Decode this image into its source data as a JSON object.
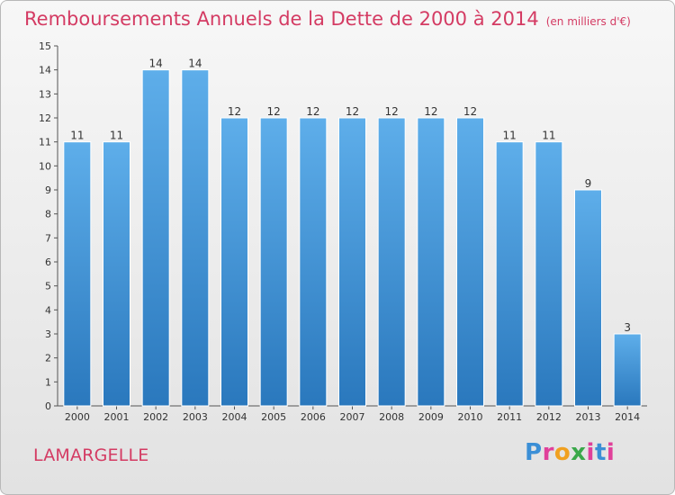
{
  "title": "Remboursements Annuels de la Dette de 2000 à 2014",
  "unit": "(en milliers d'€)",
  "commune": "LAMARGELLE",
  "logo": {
    "letters": [
      "P",
      "r",
      "o",
      "x",
      "i",
      "t",
      "i"
    ],
    "colors": [
      "#3b8fd6",
      "#e0409a",
      "#f0a020",
      "#3aa84a",
      "#e0409a",
      "#3b8fd6",
      "#e0409a"
    ]
  },
  "colors": {
    "title": "#d43b63",
    "bar_top": "#5eaeea",
    "bar_bottom": "#2a78bd"
  },
  "chart_data": {
    "type": "bar",
    "title": "Remboursements Annuels de la Dette de 2000 à 2014",
    "subtitle": "(en milliers d'€)",
    "categories": [
      "2000",
      "2001",
      "2002",
      "2003",
      "2004",
      "2005",
      "2006",
      "2007",
      "2008",
      "2009",
      "2010",
      "2011",
      "2012",
      "2013",
      "2014"
    ],
    "values": [
      11,
      11,
      14,
      14,
      12,
      12,
      12,
      12,
      12,
      12,
      12,
      11,
      11,
      9,
      3
    ],
    "data_labels": [
      "11",
      "11",
      "14",
      "14",
      "12",
      "12",
      "12",
      "12",
      "12",
      "12",
      "12",
      "11",
      "11",
      "9",
      "3"
    ],
    "yticks": [
      "0",
      "1",
      "2",
      "3",
      "4",
      "5",
      "6",
      "7",
      "8",
      "9",
      "10",
      "11",
      "12",
      "13",
      "14",
      "15"
    ],
    "ylim": [
      0,
      15
    ],
    "grid": false,
    "legend": "none"
  }
}
